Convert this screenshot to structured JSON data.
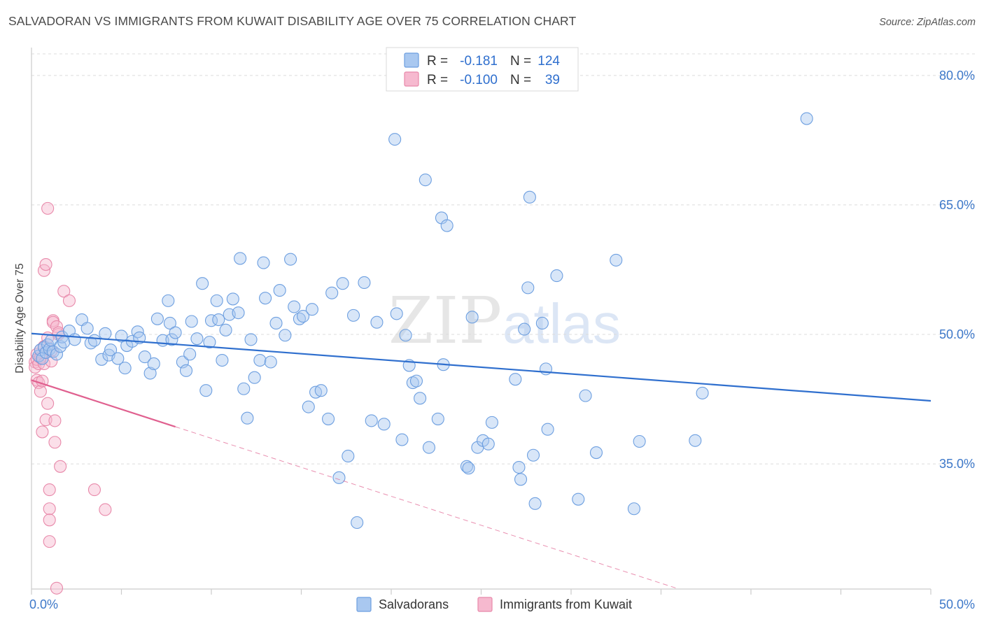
{
  "title": "SALVADORAN VS IMMIGRANTS FROM KUWAIT DISABILITY AGE OVER 75 CORRELATION CHART",
  "source": "Source: ZipAtlas.com",
  "watermark": {
    "zip": "ZIP",
    "atlas": "atlas"
  },
  "colors": {
    "blue_fill": "#a9c8f0",
    "blue_stroke": "#6d9fe0",
    "blue_line": "#2f6fce",
    "pink_fill": "#f6b9cf",
    "pink_stroke": "#e889aa",
    "pink_line": "#e0608f",
    "grid": "#dcdcdc",
    "tick_label": "#3d78c9"
  },
  "legend": {
    "r_label": "R =",
    "n_label": "N =",
    "rows": [
      {
        "series": "Salvadorans",
        "r": "-0.181",
        "n": "124"
      },
      {
        "series": "Immigrants from Kuwait",
        "r": "-0.100",
        "n": "39"
      }
    ]
  },
  "chart_data": {
    "type": "scatter",
    "title": "SALVADORAN VS IMMIGRANTS FROM KUWAIT DISABILITY AGE OVER 75 CORRELATION CHART",
    "xlabel": "",
    "ylabel": "Disability Age Over 75",
    "xlim": [
      0,
      50
    ],
    "ylim": [
      20.5,
      82.5
    ],
    "x_tick_labels": [
      "0.0%",
      "50.0%"
    ],
    "y_ticks": [
      35,
      50,
      65,
      80
    ],
    "y_tick_labels": [
      "35.0%",
      "50.0%",
      "65.0%",
      "80.0%"
    ],
    "grid": true,
    "legend_position": "top-center",
    "series": [
      {
        "name": "Salvadorans",
        "points": [
          [
            0.4,
            47.5
          ],
          [
            0.5,
            48.2
          ],
          [
            0.6,
            47.2
          ],
          [
            0.7,
            48.5
          ],
          [
            0.8,
            47.9
          ],
          [
            0.9,
            48.8
          ],
          [
            1.0,
            48.3
          ],
          [
            1.1,
            49.3
          ],
          [
            1.2,
            48.0
          ],
          [
            1.4,
            47.7
          ],
          [
            1.6,
            48.6
          ],
          [
            1.7,
            49.7
          ],
          [
            1.8,
            49.1
          ],
          [
            2.1,
            50.4
          ],
          [
            2.4,
            49.4
          ],
          [
            2.8,
            51.7
          ],
          [
            3.1,
            50.7
          ],
          [
            3.3,
            49.0
          ],
          [
            3.5,
            49.3
          ],
          [
            3.9,
            47.1
          ],
          [
            4.1,
            50.1
          ],
          [
            4.3,
            47.6
          ],
          [
            4.4,
            48.2
          ],
          [
            4.8,
            47.2
          ],
          [
            5.0,
            49.8
          ],
          [
            5.2,
            46.1
          ],
          [
            5.3,
            48.7
          ],
          [
            5.6,
            49.2
          ],
          [
            5.9,
            50.3
          ],
          [
            6.0,
            49.6
          ],
          [
            6.3,
            47.4
          ],
          [
            6.6,
            45.5
          ],
          [
            6.8,
            46.6
          ],
          [
            7.0,
            51.8
          ],
          [
            7.3,
            49.3
          ],
          [
            7.6,
            53.9
          ],
          [
            7.7,
            51.3
          ],
          [
            7.8,
            49.4
          ],
          [
            8.0,
            50.2
          ],
          [
            8.4,
            46.8
          ],
          [
            8.6,
            45.8
          ],
          [
            8.8,
            47.7
          ],
          [
            8.9,
            51.5
          ],
          [
            9.2,
            49.5
          ],
          [
            9.5,
            55.9
          ],
          [
            9.7,
            43.5
          ],
          [
            9.9,
            49.1
          ],
          [
            10.0,
            51.6
          ],
          [
            10.3,
            53.9
          ],
          [
            10.4,
            51.7
          ],
          [
            10.6,
            47.0
          ],
          [
            10.8,
            50.5
          ],
          [
            11.0,
            52.3
          ],
          [
            11.2,
            54.1
          ],
          [
            11.5,
            52.5
          ],
          [
            11.6,
            58.8
          ],
          [
            11.8,
            43.7
          ],
          [
            12.0,
            40.3
          ],
          [
            12.2,
            49.4
          ],
          [
            12.4,
            45.0
          ],
          [
            12.7,
            47.0
          ],
          [
            12.9,
            58.3
          ],
          [
            13.0,
            54.2
          ],
          [
            13.3,
            46.8
          ],
          [
            13.6,
            51.3
          ],
          [
            13.8,
            55.1
          ],
          [
            14.1,
            49.9
          ],
          [
            14.4,
            58.7
          ],
          [
            14.6,
            53.2
          ],
          [
            14.9,
            51.8
          ],
          [
            15.1,
            52.1
          ],
          [
            15.4,
            41.6
          ],
          [
            15.8,
            43.3
          ],
          [
            16.1,
            43.5
          ],
          [
            16.5,
            40.2
          ],
          [
            16.7,
            54.8
          ],
          [
            17.1,
            33.4
          ],
          [
            17.3,
            55.9
          ],
          [
            17.6,
            35.9
          ],
          [
            17.9,
            52.2
          ],
          [
            18.1,
            28.2
          ],
          [
            18.5,
            56.0
          ],
          [
            18.9,
            40.0
          ],
          [
            19.2,
            51.4
          ],
          [
            19.6,
            39.6
          ],
          [
            20.2,
            72.6
          ],
          [
            20.3,
            52.4
          ],
          [
            20.6,
            37.8
          ],
          [
            20.8,
            49.9
          ],
          [
            21.0,
            46.4
          ],
          [
            21.2,
            44.4
          ],
          [
            21.4,
            44.6
          ],
          [
            21.6,
            42.6
          ],
          [
            21.9,
            67.9
          ],
          [
            22.1,
            36.9
          ],
          [
            22.6,
            40.2
          ],
          [
            22.8,
            63.5
          ],
          [
            22.9,
            46.5
          ],
          [
            23.1,
            62.6
          ],
          [
            24.2,
            34.7
          ],
          [
            24.3,
            34.5
          ],
          [
            24.5,
            52.0
          ],
          [
            24.8,
            36.9
          ],
          [
            25.1,
            37.7
          ],
          [
            25.4,
            37.3
          ],
          [
            25.6,
            39.8
          ],
          [
            27.1,
            34.6
          ],
          [
            27.2,
            33.2
          ],
          [
            27.4,
            50.6
          ],
          [
            27.6,
            55.4
          ],
          [
            27.7,
            65.9
          ],
          [
            28.0,
            30.4
          ],
          [
            28.4,
            51.3
          ],
          [
            28.6,
            46.0
          ],
          [
            28.7,
            39.0
          ],
          [
            29.2,
            56.8
          ],
          [
            30.4,
            30.9
          ],
          [
            30.8,
            42.9
          ],
          [
            31.4,
            36.3
          ],
          [
            32.5,
            58.6
          ],
          [
            33.5,
            29.8
          ],
          [
            33.8,
            37.6
          ],
          [
            36.9,
            37.7
          ],
          [
            37.3,
            43.2
          ],
          [
            43.1,
            75.0
          ],
          [
            27.9,
            36.0
          ],
          [
            26.9,
            44.8
          ],
          [
            15.6,
            52.9
          ]
        ]
      },
      {
        "name": "Immigrants from Kuwait",
        "points": [
          [
            0.2,
            46.8
          ],
          [
            0.2,
            46.2
          ],
          [
            0.3,
            47.7
          ],
          [
            0.3,
            47.1
          ],
          [
            0.3,
            44.7
          ],
          [
            0.4,
            44.4
          ],
          [
            0.4,
            46.6
          ],
          [
            0.5,
            47.3
          ],
          [
            0.5,
            43.4
          ],
          [
            0.5,
            48.2
          ],
          [
            0.6,
            38.7
          ],
          [
            0.6,
            44.6
          ],
          [
            0.7,
            48.6
          ],
          [
            0.7,
            46.6
          ],
          [
            0.7,
            57.4
          ],
          [
            0.8,
            40.1
          ],
          [
            0.8,
            58.1
          ],
          [
            0.9,
            64.6
          ],
          [
            0.9,
            42.0
          ],
          [
            1.0,
            32.0
          ],
          [
            1.0,
            29.8
          ],
          [
            1.0,
            28.5
          ],
          [
            1.0,
            26.0
          ],
          [
            1.1,
            48.1
          ],
          [
            1.1,
            46.9
          ],
          [
            1.2,
            51.6
          ],
          [
            1.2,
            51.4
          ],
          [
            1.3,
            37.5
          ],
          [
            1.3,
            40.0
          ],
          [
            1.4,
            20.6
          ],
          [
            1.4,
            50.9
          ],
          [
            1.5,
            50.0
          ],
          [
            1.5,
            50.2
          ],
          [
            1.6,
            34.7
          ],
          [
            1.8,
            55.0
          ],
          [
            2.1,
            53.9
          ],
          [
            3.5,
            32.0
          ],
          [
            4.1,
            29.7
          ],
          [
            0.9,
            49.6
          ]
        ]
      }
    ],
    "trendlines": [
      {
        "series": "Salvadorans",
        "x": [
          0.0,
          50.0
        ],
        "y": [
          50.1,
          42.3
        ],
        "style": "solid"
      },
      {
        "series": "Immigrants from Kuwait",
        "x": [
          0.0,
          8.0
        ],
        "y": [
          44.7,
          39.3
        ],
        "style": "solid"
      },
      {
        "series": "Immigrants from Kuwait",
        "x": [
          8.0,
          36.0
        ],
        "y": [
          39.3,
          20.5
        ],
        "style": "dashed"
      }
    ]
  }
}
